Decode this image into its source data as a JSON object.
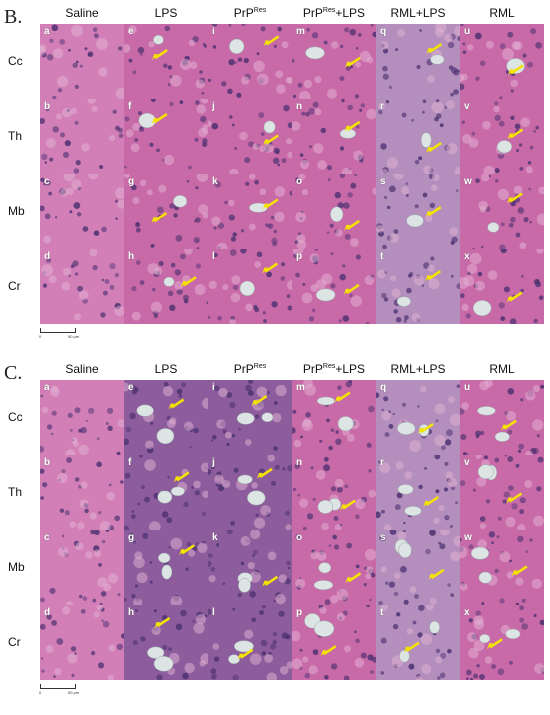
{
  "panels": [
    {
      "label": "B.",
      "columns": [
        "Saline",
        "LPS",
        "PrP^Res",
        "PrP^Res+LPS",
        "RML+LPS",
        "RML"
      ],
      "rows": [
        "Cc",
        "Th",
        "Mb",
        "Cr"
      ],
      "cell_letters": [
        [
          "a",
          "e",
          "i",
          "m",
          "q",
          "u"
        ],
        [
          "b",
          "f",
          "j",
          "n",
          "r",
          "v"
        ],
        [
          "c",
          "g",
          "k",
          "o",
          "s",
          "w"
        ],
        [
          "d",
          "h",
          "l",
          "p",
          "t",
          "x"
        ]
      ],
      "scale": {
        "start": "0",
        "end": "50 μm"
      }
    },
    {
      "label": "C.",
      "columns": [
        "Saline",
        "LPS",
        "PrP^Res",
        "PrP^Res+LPS",
        "RML+LPS",
        "RML"
      ],
      "rows": [
        "Cc",
        "Th",
        "Mb",
        "Cr"
      ],
      "cell_letters": [
        [
          "a",
          "e",
          "i",
          "m",
          "q",
          "u"
        ],
        [
          "b",
          "f",
          "j",
          "n",
          "r",
          "v"
        ],
        [
          "c",
          "g",
          "k",
          "o",
          "s",
          "w"
        ],
        [
          "d",
          "h",
          "l",
          "p",
          "t",
          "x"
        ]
      ],
      "scale": {
        "start": "0",
        "end": "50 μm"
      }
    }
  ],
  "colors": {
    "arrow": "#f5e400",
    "tissue_pink": "#c65aa0",
    "tissue_purple": "#7a5a9a"
  }
}
